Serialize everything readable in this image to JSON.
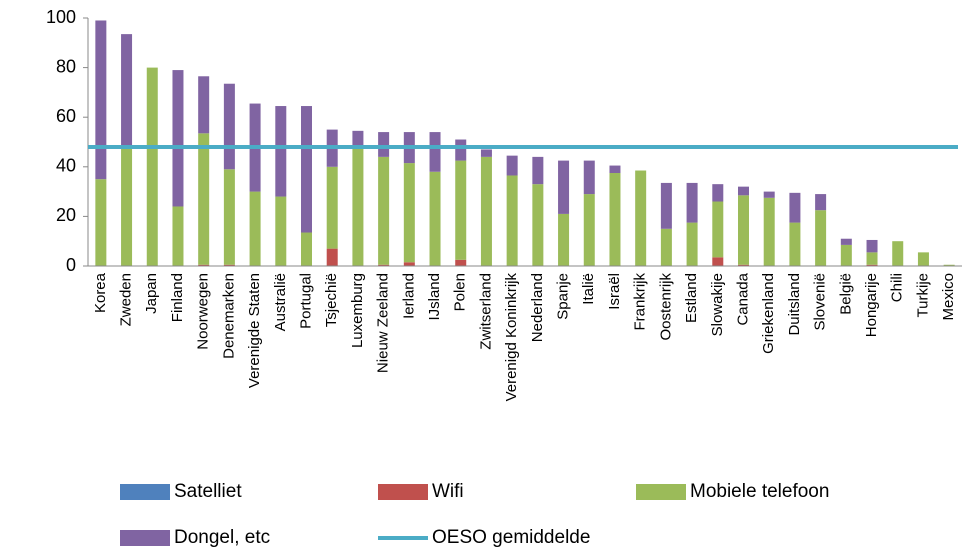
{
  "chart_data": {
    "type": "stacked_bar",
    "categories": [
      "Korea",
      "Zweden",
      "Japan",
      "Finland",
      "Noorwegen",
      "Denemarken",
      "Verenigde Staten",
      "Australië",
      "Portugal",
      "Tsjechië",
      "Luxemburg",
      "Nieuw Zeeland",
      "Ierland",
      "IJsland",
      "Polen",
      "Zwitserland",
      "Verenigd Koninkrijk",
      "Nederland",
      "Spanje",
      "Italië",
      "Israël",
      "Frankrijk",
      "Oostenrijk",
      "Estland",
      "Slowakije",
      "Canada",
      "Griekenland",
      "Duitsland",
      "Slovenië",
      "België",
      "Hongarije",
      "Chili",
      "Turkije",
      "Mexico"
    ],
    "series": [
      {
        "name": "Satelliet",
        "color": "#4f81bd",
        "values": [
          0,
          0,
          0,
          0,
          0,
          0,
          0,
          0,
          0,
          0,
          0,
          0,
          0,
          0,
          0,
          0,
          0,
          0,
          0,
          0,
          0,
          0,
          0,
          0,
          0,
          0,
          0,
          0,
          0,
          0,
          0,
          0,
          0,
          0
        ]
      },
      {
        "name": "Wifi",
        "color": "#c0504d",
        "values": [
          0,
          0,
          0,
          0,
          0.5,
          0.5,
          0,
          0,
          0,
          7,
          0,
          0.5,
          1.5,
          0,
          2.5,
          0,
          0,
          0,
          0,
          0,
          0,
          0,
          0,
          0,
          3.5,
          0.5,
          0,
          0,
          0,
          0,
          0.5,
          0,
          0,
          0
        ]
      },
      {
        "name": "Mobiele telefoon",
        "color": "#9bbb59",
        "values": [
          35,
          48,
          80,
          24,
          53,
          38.5,
          30,
          28,
          13.5,
          33,
          48.5,
          43.5,
          40,
          38,
          40,
          44,
          36.5,
          33,
          21,
          29,
          37.5,
          38.5,
          15,
          17.5,
          22.5,
          28,
          27.5,
          17.5,
          22.5,
          8.5,
          5,
          10,
          5.5,
          0.5
        ]
      },
      {
        "name": "Dongel, etc",
        "color": "#8064a2",
        "values": [
          64,
          45.5,
          0,
          55,
          23,
          34.5,
          35.5,
          36.5,
          51,
          15,
          6,
          10,
          12.5,
          16,
          8.5,
          3,
          8,
          11,
          21.5,
          13.5,
          3,
          0,
          18.5,
          16,
          7,
          3.5,
          2.5,
          12,
          6.5,
          2.5,
          5,
          0,
          0,
          0
        ]
      }
    ],
    "reference_lines": [
      {
        "name": "OESO gemiddelde",
        "color": "#4bacc6",
        "value": 48
      }
    ],
    "ylim": [
      0,
      100
    ],
    "yticks": [
      0,
      20,
      40,
      60,
      80,
      100
    ]
  }
}
